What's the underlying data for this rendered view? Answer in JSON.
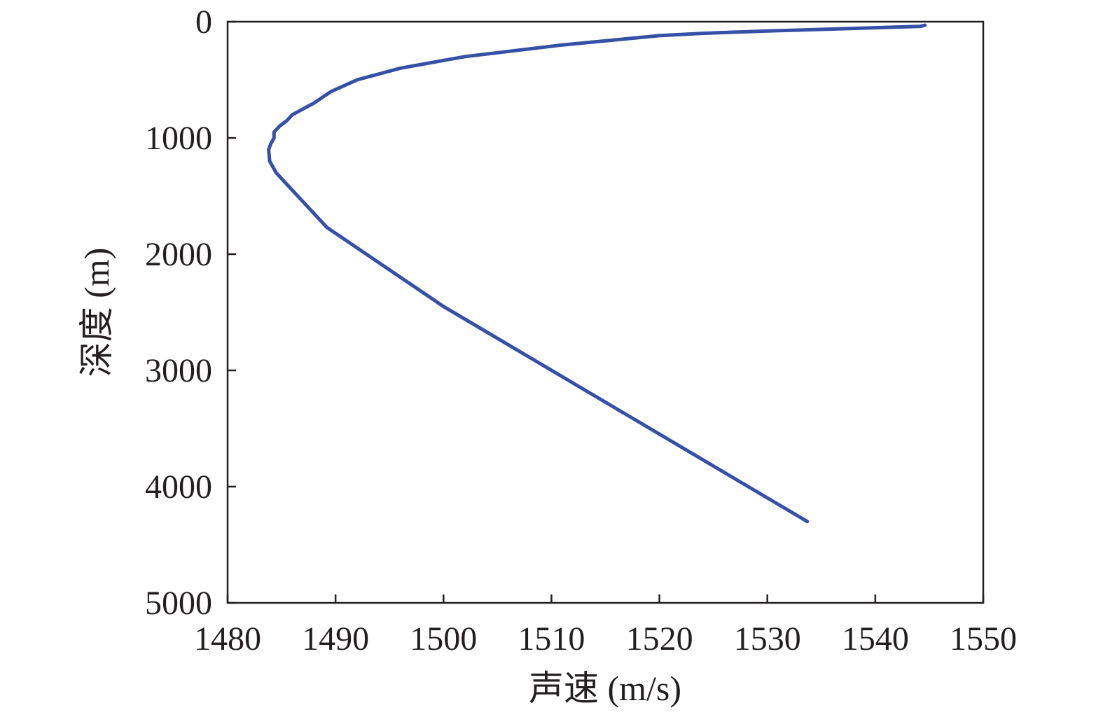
{
  "chart_data": {
    "type": "line",
    "title": "",
    "xlabel": "声速 (m/s)",
    "ylabel": "深度 (m)",
    "xlim": [
      1480,
      1550
    ],
    "ylim": [
      0,
      5000
    ],
    "y_inverted": true,
    "x_ticks": [
      1480,
      1490,
      1500,
      1510,
      1520,
      1530,
      1540,
      1550
    ],
    "y_ticks": [
      0,
      1000,
      2000,
      3000,
      4000,
      5000
    ],
    "x_tick_labels": [
      "1480",
      "1490",
      "1500",
      "1510",
      "1520",
      "1530",
      "1540",
      "1550"
    ],
    "y_tick_labels": [
      "0",
      "1000",
      "2000",
      "3000",
      "4000",
      "5000"
    ],
    "grid": false,
    "series": [
      {
        "color": "#3550a5",
        "x": [
          1544.6,
          1544.2,
          1540.8,
          1530.0,
          1524.0,
          1520.0,
          1511.0,
          1502.0,
          1496.0,
          1492.0,
          1489.6,
          1488.0,
          1486.0,
          1485.5,
          1484.8,
          1484.3,
          1484.3,
          1484.0,
          1483.8,
          1483.9,
          1484.5,
          1485.5,
          1487.0,
          1489.2,
          1500.0,
          1533.7
        ],
        "y": [
          30,
          40,
          50,
          80,
          100,
          120,
          200,
          300,
          400,
          500,
          600,
          700,
          800,
          850,
          900,
          950,
          1000,
          1050,
          1100,
          1200,
          1300,
          1400,
          1550,
          1770,
          2450,
          4300
        ]
      }
    ]
  }
}
